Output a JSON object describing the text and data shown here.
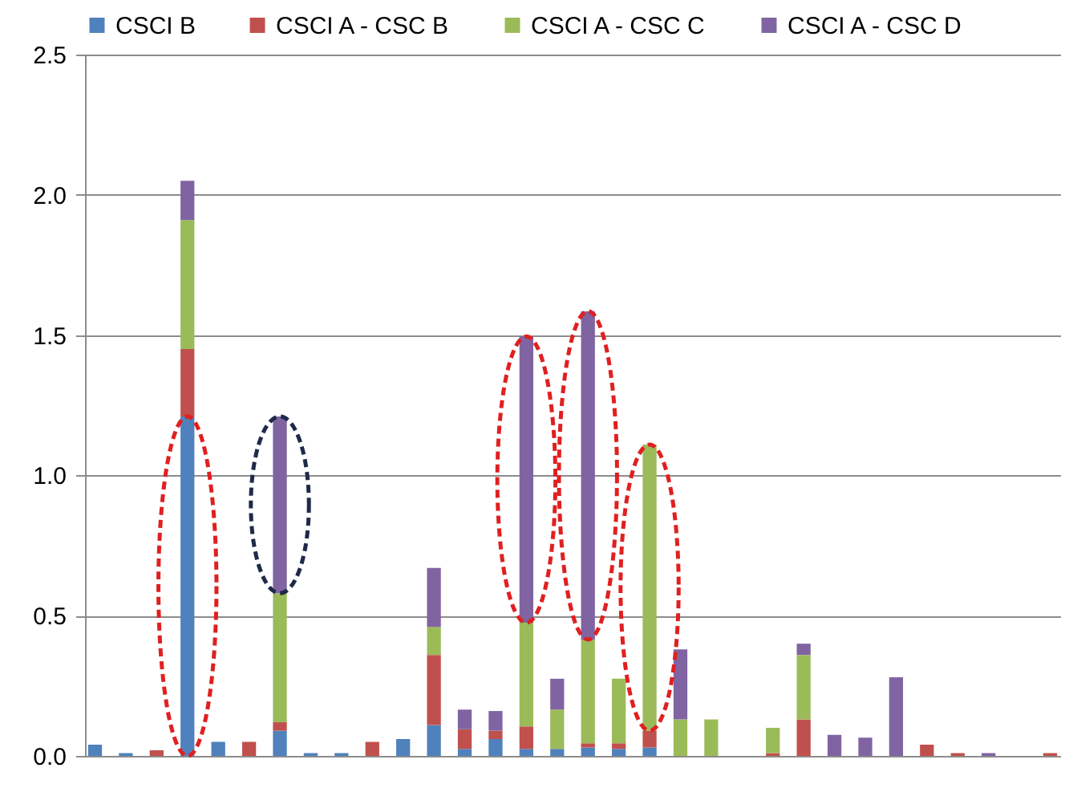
{
  "chart_data": {
    "type": "bar",
    "stacked": true,
    "categories": [
      null,
      null,
      null,
      null,
      null,
      null,
      null,
      null,
      null,
      null,
      null,
      null,
      null,
      null,
      null,
      null,
      null,
      null,
      null,
      null,
      null,
      null,
      null,
      null,
      null,
      null,
      null,
      null,
      null,
      null,
      null,
      null
    ],
    "series": [
      {
        "name": "CSCI B",
        "color": "#4f81bd",
        "values": [
          0.04,
          0.01,
          null,
          1.21,
          0.05,
          null,
          0.09,
          0.01,
          0.01,
          null,
          0.06,
          0.11,
          0.025,
          0.06,
          0.025,
          0.025,
          0.03,
          0.025,
          0.03,
          null,
          null,
          null,
          null,
          null,
          null,
          null,
          null,
          null,
          null,
          null,
          null,
          null
        ]
      },
      {
        "name": "CSCI A - CSC B",
        "color": "#c0504d",
        "values": [
          null,
          null,
          0.02,
          0.24,
          null,
          0.05,
          0.03,
          null,
          null,
          0.05,
          null,
          0.25,
          0.07,
          0.03,
          0.08,
          null,
          0.015,
          0.02,
          0.06,
          null,
          null,
          null,
          0.01,
          0.13,
          null,
          null,
          null,
          0.04,
          0.01,
          null,
          null,
          0.01
        ]
      },
      {
        "name": "CSCI A - CSC C",
        "color": "#9bbb59",
        "values": [
          null,
          null,
          null,
          0.46,
          null,
          null,
          0.46,
          null,
          null,
          null,
          null,
          0.1,
          null,
          null,
          0.37,
          0.14,
          0.37,
          0.23,
          1.02,
          0.13,
          0.13,
          null,
          0.09,
          0.23,
          null,
          null,
          null,
          null,
          null,
          null,
          null,
          null
        ]
      },
      {
        "name": "CSCI A - CSC D",
        "color": "#8064a2",
        "values": [
          null,
          null,
          null,
          0.14,
          null,
          null,
          0.63,
          null,
          null,
          null,
          null,
          0.21,
          0.07,
          0.07,
          1.02,
          0.11,
          1.17,
          null,
          null,
          0.25,
          null,
          null,
          null,
          0.04,
          0.075,
          0.065,
          0.28,
          null,
          null,
          0.01,
          null,
          null
        ]
      }
    ],
    "ylim": [
      0,
      2.5
    ],
    "yticks": [
      {
        "value": 0,
        "label": "0.0"
      },
      {
        "value": 0.5,
        "label": "0.5"
      },
      {
        "value": 1,
        "label": "1.0"
      },
      {
        "value": 1.5,
        "label": "1.5"
      },
      {
        "value": 2,
        "label": "2.0"
      },
      {
        "value": 2.5,
        "label": "2.5"
      }
    ],
    "grid": "y",
    "legend": "top",
    "tick_labels": "y"
  }
}
